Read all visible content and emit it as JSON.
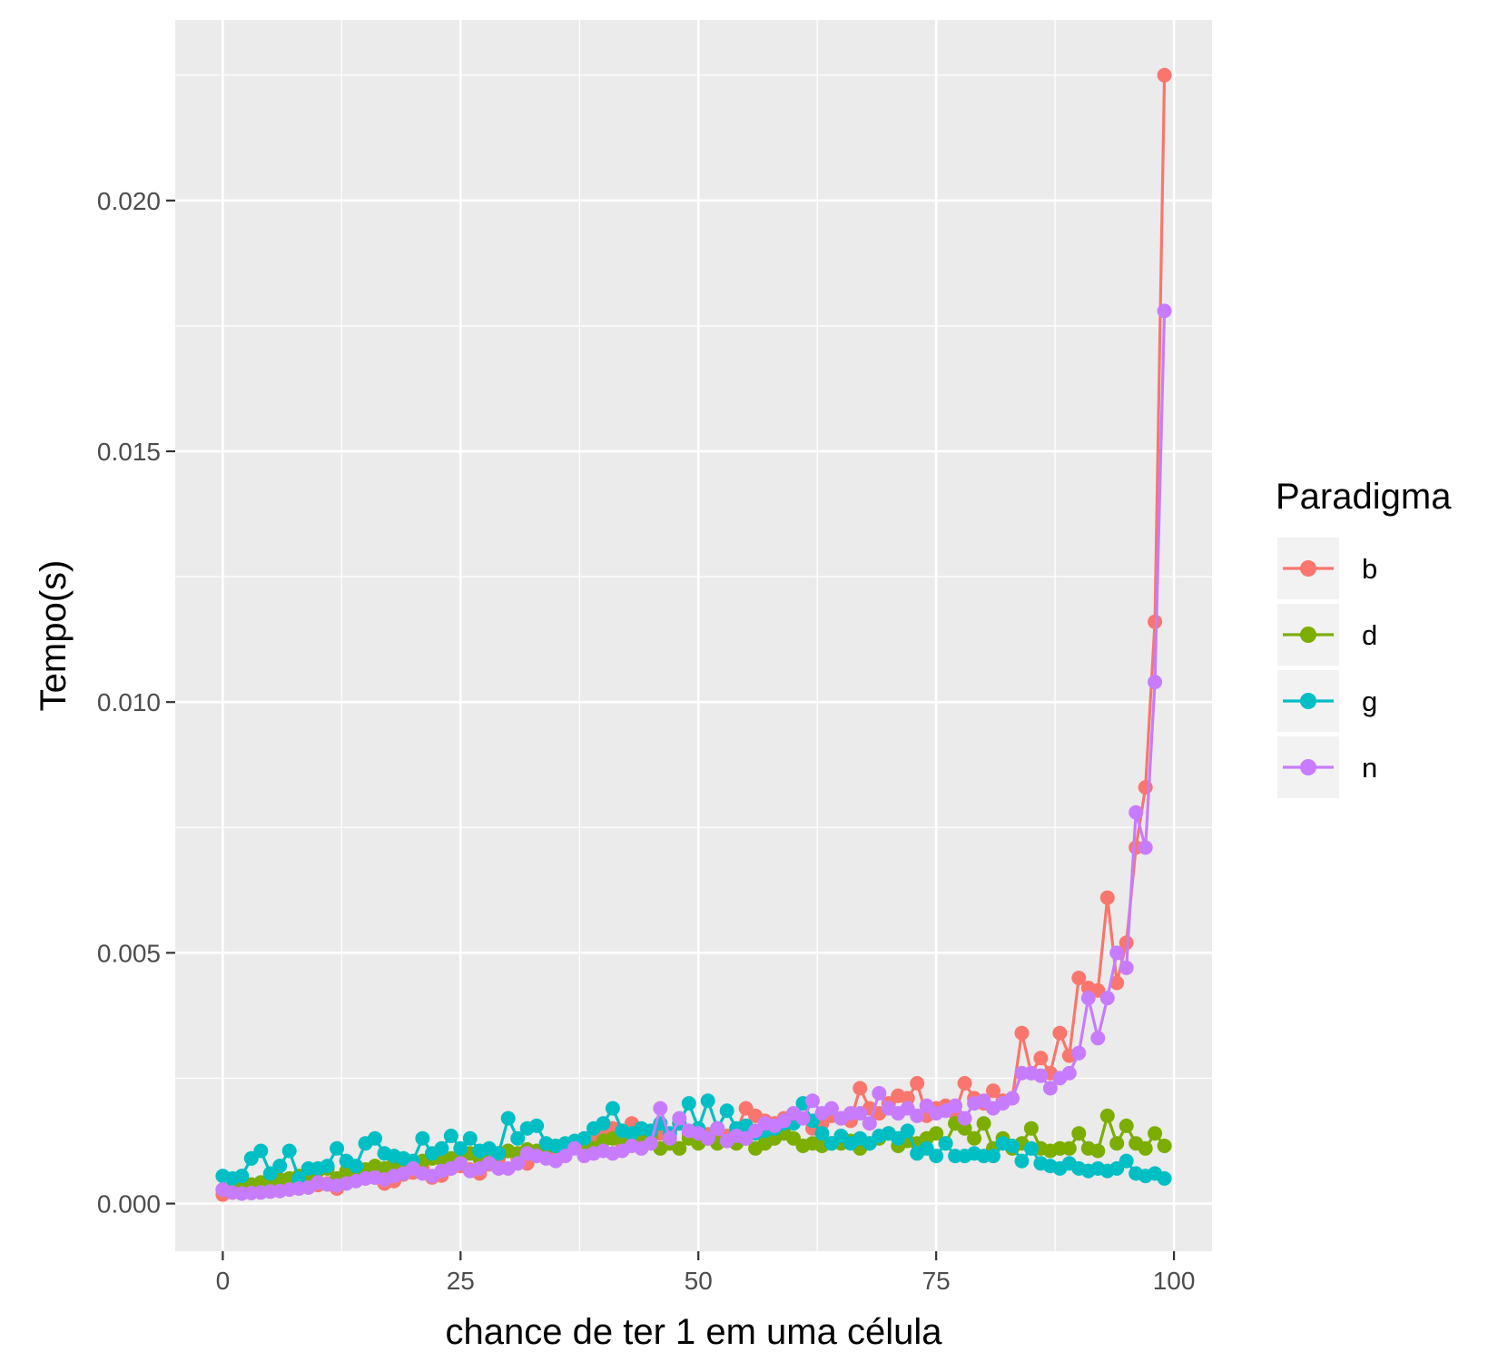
{
  "chart_data": {
    "type": "line",
    "title": "",
    "xlabel": "chance de ter 1 em uma célula",
    "ylabel": "Tempo(s)",
    "xlim": [
      -5,
      104
    ],
    "ylim": [
      -0.00095,
      0.0236
    ],
    "x_ticks": [
      0,
      25,
      50,
      75,
      100
    ],
    "x_tick_labels": [
      "0",
      "25",
      "50",
      "75",
      "100"
    ],
    "y_ticks": [
      0.0,
      0.005,
      0.01,
      0.015,
      0.02
    ],
    "y_tick_labels": [
      "0.000",
      "0.005",
      "0.010",
      "0.015",
      "0.020"
    ],
    "grid": true,
    "legend": {
      "title": "Paradigma",
      "position": "right"
    },
    "x": [
      0,
      1,
      2,
      3,
      4,
      5,
      6,
      7,
      8,
      9,
      10,
      11,
      12,
      13,
      14,
      15,
      16,
      17,
      18,
      19,
      20,
      21,
      22,
      23,
      24,
      25,
      26,
      27,
      28,
      29,
      30,
      31,
      32,
      33,
      34,
      35,
      36,
      37,
      38,
      39,
      40,
      41,
      42,
      43,
      44,
      45,
      46,
      47,
      48,
      49,
      50,
      51,
      52,
      53,
      54,
      55,
      56,
      57,
      58,
      59,
      60,
      61,
      62,
      63,
      64,
      65,
      66,
      67,
      68,
      69,
      70,
      71,
      72,
      73,
      74,
      75,
      76,
      77,
      78,
      79,
      80,
      81,
      82,
      83,
      84,
      85,
      86,
      87,
      88,
      89,
      90,
      91,
      92,
      93,
      94,
      95,
      96,
      97,
      98,
      99
    ],
    "series": [
      {
        "name": "b",
        "color": "#F8766D",
        "values": [
          0.00018,
          0.00022,
          0.00024,
          0.00026,
          0.00027,
          0.00028,
          0.0003,
          0.00032,
          0.00034,
          0.00035,
          0.00037,
          0.0004,
          0.0003,
          0.00043,
          0.00047,
          0.0005,
          0.00052,
          0.0004,
          0.00045,
          0.00058,
          0.00062,
          0.0007,
          0.00052,
          0.00056,
          0.0007,
          0.00075,
          0.00068,
          0.0006,
          0.00078,
          0.0009,
          0.00105,
          0.0009,
          0.0008,
          0.001,
          0.0011,
          0.00095,
          0.0011,
          0.0012,
          0.00125,
          0.0013,
          0.0014,
          0.0015,
          0.0012,
          0.0016,
          0.00145,
          0.0013,
          0.0014,
          0.0012,
          0.0016,
          0.0014,
          0.00148,
          0.00138,
          0.00125,
          0.00135,
          0.00145,
          0.0019,
          0.00175,
          0.00165,
          0.0016,
          0.0017,
          0.00165,
          0.0017,
          0.0015,
          0.0016,
          0.00175,
          0.0017,
          0.00165,
          0.0023,
          0.0019,
          0.0018,
          0.002,
          0.00215,
          0.0021,
          0.0024,
          0.00175,
          0.0019,
          0.00195,
          0.0018,
          0.0024,
          0.0021,
          0.002,
          0.00225,
          0.00205,
          0.0021,
          0.0034,
          0.0026,
          0.0029,
          0.0026,
          0.0034,
          0.00295,
          0.0045,
          0.0043,
          0.00425,
          0.0061,
          0.0044,
          0.0052,
          0.0071,
          0.0083,
          0.0116,
          0.0225
        ]
      },
      {
        "name": "d",
        "color": "#7CAE00",
        "values": [
          0.00028,
          0.00032,
          0.00036,
          0.00038,
          0.00042,
          0.00045,
          0.00048,
          0.0005,
          0.00055,
          0.0006,
          0.00065,
          0.0007,
          0.0005,
          0.00065,
          0.0007,
          0.00068,
          0.00075,
          0.0007,
          0.0008,
          0.00075,
          0.0008,
          0.00085,
          0.0009,
          0.00088,
          0.0009,
          0.00095,
          0.001,
          0.0009,
          0.00095,
          0.001,
          0.00105,
          0.001,
          0.00108,
          0.00105,
          0.0011,
          0.00115,
          0.0011,
          0.0012,
          0.0012,
          0.0011,
          0.00125,
          0.0013,
          0.0013,
          0.00125,
          0.0013,
          0.00135,
          0.0011,
          0.0012,
          0.0011,
          0.0013,
          0.0012,
          0.0013,
          0.0012,
          0.00125,
          0.0012,
          0.0013,
          0.0011,
          0.0012,
          0.0013,
          0.0014,
          0.0013,
          0.00115,
          0.0012,
          0.00115,
          0.0012,
          0.0012,
          0.00125,
          0.0011,
          0.0012,
          0.0013,
          0.0014,
          0.00115,
          0.00125,
          0.0012,
          0.0013,
          0.0014,
          0.0012,
          0.0016,
          0.0015,
          0.0013,
          0.0016,
          0.0011,
          0.0013,
          0.0011,
          0.0012,
          0.0015,
          0.0011,
          0.00105,
          0.0011,
          0.0011,
          0.0014,
          0.0011,
          0.00105,
          0.00175,
          0.0012,
          0.00155,
          0.0012,
          0.0011,
          0.0014,
          0.00115
        ]
      },
      {
        "name": "g",
        "color": "#00BFC4",
        "values": [
          0.00055,
          0.0005,
          0.00055,
          0.0009,
          0.00105,
          0.0006,
          0.00075,
          0.00105,
          0.0005,
          0.0007,
          0.0007,
          0.00075,
          0.0011,
          0.00085,
          0.00075,
          0.0012,
          0.0013,
          0.001,
          0.00095,
          0.0009,
          0.00085,
          0.0013,
          0.001,
          0.0011,
          0.00135,
          0.0011,
          0.0013,
          0.00105,
          0.0011,
          0.001,
          0.0017,
          0.0013,
          0.0015,
          0.00155,
          0.0012,
          0.00115,
          0.0012,
          0.00125,
          0.0013,
          0.0015,
          0.0016,
          0.0019,
          0.00145,
          0.0014,
          0.0015,
          0.00145,
          0.0016,
          0.0014,
          0.0016,
          0.002,
          0.0015,
          0.00205,
          0.0015,
          0.00185,
          0.0015,
          0.00155,
          0.0014,
          0.00145,
          0.0015,
          0.0016,
          0.0016,
          0.002,
          0.00165,
          0.0014,
          0.0012,
          0.00135,
          0.0012,
          0.0013,
          0.0012,
          0.00135,
          0.0014,
          0.0013,
          0.00145,
          0.001,
          0.0011,
          0.00095,
          0.0012,
          0.00095,
          0.00095,
          0.001,
          0.00095,
          0.00095,
          0.0012,
          0.00115,
          0.00085,
          0.0011,
          0.0008,
          0.00075,
          0.0007,
          0.0008,
          0.0007,
          0.00065,
          0.0007,
          0.00065,
          0.0007,
          0.00085,
          0.0006,
          0.00055,
          0.0006,
          0.0005
        ]
      },
      {
        "name": "n",
        "color": "#C77CFF",
        "values": [
          0.00028,
          0.00022,
          0.0002,
          0.00021,
          0.00022,
          0.00024,
          0.00025,
          0.00028,
          0.0003,
          0.00032,
          0.00042,
          0.00038,
          0.00036,
          0.0004,
          0.00045,
          0.0005,
          0.00052,
          0.00048,
          0.00055,
          0.0006,
          0.0007,
          0.0006,
          0.00055,
          0.00065,
          0.0007,
          0.0008,
          0.00065,
          0.0007,
          0.0008,
          0.0007,
          0.0007,
          0.0008,
          0.001,
          0.00095,
          0.0009,
          0.00085,
          0.00095,
          0.0011,
          0.00095,
          0.001,
          0.00105,
          0.001,
          0.00105,
          0.00115,
          0.0011,
          0.0012,
          0.0019,
          0.0013,
          0.0017,
          0.00145,
          0.0014,
          0.0013,
          0.0015,
          0.00125,
          0.00135,
          0.0013,
          0.00145,
          0.0016,
          0.00155,
          0.00165,
          0.0018,
          0.0017,
          0.00205,
          0.0018,
          0.0019,
          0.0017,
          0.0018,
          0.0018,
          0.0016,
          0.0022,
          0.0019,
          0.0018,
          0.0019,
          0.00175,
          0.00195,
          0.0018,
          0.00185,
          0.00195,
          0.0017,
          0.002,
          0.00205,
          0.0019,
          0.002,
          0.0021,
          0.0026,
          0.0026,
          0.00255,
          0.0023,
          0.0025,
          0.0026,
          0.003,
          0.0041,
          0.0033,
          0.0041,
          0.005,
          0.0047,
          0.0078,
          0.0071,
          0.0104,
          0.0178
        ]
      }
    ]
  }
}
